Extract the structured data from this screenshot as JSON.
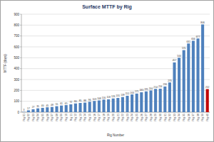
{
  "chart_data": {
    "type": "bar",
    "title": "Surface MTTF by Rig",
    "x_label": "Rig Number",
    "y_label": "MTTF (days)",
    "categories": [
      "Rig 01",
      "Rig 02",
      "Rig 03",
      "Rig 04",
      "Rig 05",
      "Rig 06",
      "Rig 07",
      "Rig 08",
      "Rig 09",
      "Rig 10",
      "Rig 11",
      "Rig 12",
      "Rig 13",
      "Rig 14",
      "Rig 15",
      "Rig 16",
      "Rig 17",
      "Rig 18",
      "Rig 19",
      "Rig 20",
      "Rig 21",
      "Rig 22",
      "Rig 23",
      "Rig 24",
      "Rig 25",
      "Rig 26",
      "Rig 27",
      "Rig 28",
      "Rig 29",
      "Rig 30",
      "Rig 31",
      "Rig 32",
      "Rig 33",
      "Rig 34",
      "Rig 35",
      "Rig 36",
      "Rig 37",
      "Rig 38",
      "Rig 39",
      "Rig 40"
    ],
    "values": [
      3,
      17,
      27,
      35,
      40,
      45,
      48,
      55,
      61,
      65,
      72,
      80,
      85,
      88,
      96,
      103,
      108,
      116,
      118,
      126,
      131,
      139,
      151,
      163,
      171,
      183,
      191,
      200,
      214,
      216,
      236,
      273,
      457,
      500,
      570,
      631,
      656,
      677,
      806,
      212
    ],
    "colors": [
      "#4f81bd",
      "#4f81bd",
      "#4f81bd",
      "#4f81bd",
      "#4f81bd",
      "#4f81bd",
      "#4f81bd",
      "#4f81bd",
      "#4f81bd",
      "#4f81bd",
      "#4f81bd",
      "#4f81bd",
      "#4f81bd",
      "#4f81bd",
      "#4f81bd",
      "#4f81bd",
      "#4f81bd",
      "#4f81bd",
      "#4f81bd",
      "#4f81bd",
      "#4f81bd",
      "#4f81bd",
      "#4f81bd",
      "#4f81bd",
      "#4f81bd",
      "#4f81bd",
      "#4f81bd",
      "#4f81bd",
      "#4f81bd",
      "#4f81bd",
      "#4f81bd",
      "#4f81bd",
      "#4f81bd",
      "#4f81bd",
      "#4f81bd",
      "#4f81bd",
      "#4f81bd",
      "#4f81bd",
      "#4f81bd",
      "#c00000"
    ],
    "ylim": [
      0,
      900
    ],
    "yticks": [
      0,
      100,
      200,
      300,
      400,
      500,
      600,
      700,
      800,
      900
    ],
    "grid": true,
    "data_labels": true
  }
}
